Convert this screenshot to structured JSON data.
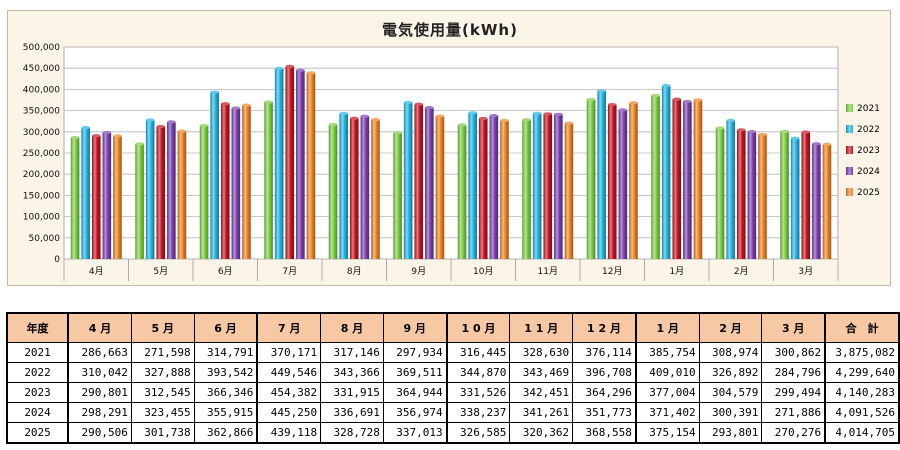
{
  "chart_data": {
    "type": "bar",
    "title": "電気使用量(kWh)",
    "categories": [
      "4月",
      "5月",
      "6月",
      "7月",
      "8月",
      "9月",
      "10月",
      "11月",
      "12月",
      "1月",
      "2月",
      "3月"
    ],
    "ylim": [
      0,
      500000
    ],
    "yticks": [
      "0",
      "50,000",
      "100,000",
      "150,000",
      "200,000",
      "250,000",
      "300,000",
      "350,000",
      "400,000",
      "450,000",
      "500,000"
    ],
    "legend_position": "right",
    "grid": true,
    "series": [
      {
        "name": "2021",
        "color": "#7ccf3f",
        "values": [
          286663,
          271598,
          314791,
          370171,
          317146,
          297934,
          316445,
          328630,
          376114,
          385754,
          308974,
          300862
        ]
      },
      {
        "name": "2022",
        "color": "#1fb5e6",
        "values": [
          310042,
          327888,
          393542,
          449546,
          343366,
          369511,
          344870,
          343469,
          396708,
          409010,
          326892,
          284796
        ]
      },
      {
        "name": "2023",
        "color": "#c8141d",
        "values": [
          290801,
          312545,
          366346,
          454382,
          331915,
          364944,
          331526,
          342451,
          364296,
          377004,
          304579,
          299494
        ]
      },
      {
        "name": "2024",
        "color": "#7a3fb0",
        "values": [
          298291,
          323455,
          355915,
          445250,
          336691,
          356974,
          338237,
          341261,
          351773,
          371402,
          300391,
          271886
        ]
      },
      {
        "name": "2025",
        "color": "#ef8420",
        "values": [
          290506,
          301738,
          362866,
          439118,
          328728,
          337013,
          326585,
          320362,
          368558,
          375154,
          293801,
          270276
        ]
      }
    ]
  },
  "table": {
    "corner": "年度",
    "headers": [
      "4 月",
      "5 月",
      "6 月",
      "7 月",
      "8 月",
      "9 月",
      "1 0 月",
      "1 1 月",
      "1 2 月",
      "1 月",
      "2 月",
      "3 月",
      "合　計"
    ],
    "rows": [
      {
        "year": "2021",
        "cells": [
          "286,663",
          "271,598",
          "314,791",
          "370,171",
          "317,146",
          "297,934",
          "316,445",
          "328,630",
          "376,114",
          "385,754",
          "308,974",
          "300,862",
          "3,875,082"
        ]
      },
      {
        "year": "2022",
        "cells": [
          "310,042",
          "327,888",
          "393,542",
          "449,546",
          "343,366",
          "369,511",
          "344,870",
          "343,469",
          "396,708",
          "409,010",
          "326,892",
          "284,796",
          "4,299,640"
        ]
      },
      {
        "year": "2023",
        "cells": [
          "290,801",
          "312,545",
          "366,346",
          "454,382",
          "331,915",
          "364,944",
          "331,526",
          "342,451",
          "364,296",
          "377,004",
          "304,579",
          "299,494",
          "4,140,283"
        ]
      },
      {
        "year": "2024",
        "cells": [
          "298,291",
          "323,455",
          "355,915",
          "445,250",
          "336,691",
          "356,974",
          "338,237",
          "341,261",
          "351,773",
          "371,402",
          "300,391",
          "271,886",
          "4,091,526"
        ]
      },
      {
        "year": "2025",
        "cells": [
          "290,506",
          "301,738",
          "362,866",
          "439,118",
          "328,728",
          "337,013",
          "326,585",
          "320,362",
          "368,558",
          "375,154",
          "293,801",
          "270,276",
          "4,014,705"
        ]
      }
    ]
  }
}
